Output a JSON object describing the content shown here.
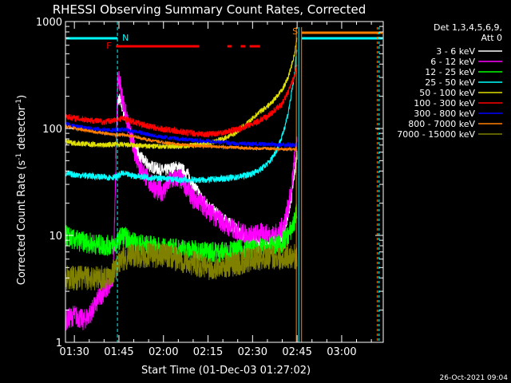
{
  "chart_data": {
    "type": "line",
    "title": "RHESSI Observing Summary Count Rates, Corrected",
    "xlabel": "Start Time (01-Dec-03 01:27:02)",
    "ylabel_main": "Corrected Count Rate (s",
    "ylabel_sup1": "-1",
    "ylabel_mid": " detector",
    "ylabel_sup2": "-1",
    "ylabel_end": ")",
    "yscale": "log",
    "ylim": [
      1,
      1000
    ],
    "xlim_minutes": [
      87.0,
      194.0
    ],
    "x_tick_labels": [
      "01:30",
      "01:45",
      "02:00",
      "02:15",
      "02:30",
      "02:45",
      "03:00"
    ],
    "x_tick_minutes": [
      90,
      105,
      120,
      135,
      150,
      165,
      180
    ],
    "y_tick_labels": [
      "1",
      "10",
      "100",
      "1000"
    ],
    "y_tick_values": [
      1,
      10,
      100,
      1000
    ],
    "timestamp": "26-Oct-2021 09:04",
    "legend_header": "Det 1,3,4,5,6,9,",
    "legend_att": "Att 0",
    "flags": {
      "N": "N",
      "F": "F",
      "S": "S",
      "n_minutes": 104.5,
      "f_segments": [
        [
          104,
          132
        ],
        [
          141.5,
          143
        ],
        [
          146,
          147.5
        ],
        [
          149,
          152.5
        ]
      ],
      "s_minutes": 165,
      "saa_band": [
        166.5,
        192
      ]
    },
    "series": [
      {
        "name": "3 - 6 keV",
        "color": "#ffffff",
        "noise": 0.06,
        "x": [
          104,
          104.5,
          105,
          106,
          108,
          110,
          112,
          115,
          118,
          120,
          122,
          125,
          128,
          130,
          133,
          136,
          139,
          142,
          145,
          148,
          150,
          153,
          156,
          159,
          161,
          163,
          164,
          165
        ],
        "y": [
          60,
          160,
          195,
          160,
          110,
          70,
          55,
          45,
          42,
          40,
          42,
          44,
          38,
          30,
          22,
          18,
          15,
          13,
          11,
          9,
          9.5,
          9,
          8.5,
          9,
          12,
          22,
          35,
          60
        ]
      },
      {
        "name": "6 - 12 keV",
        "color": "#ff00ff",
        "noise": 0.1,
        "x": [
          87,
          90,
          93,
          95,
          96,
          97,
          98,
          99,
          100,
          101,
          102,
          103,
          104,
          104.5,
          105,
          106,
          108,
          110,
          112,
          115,
          118,
          120,
          122,
          125,
          128,
          130,
          133,
          136,
          139,
          142,
          145,
          148,
          150,
          153,
          156,
          159,
          161,
          163,
          164,
          165
        ],
        "y": [
          1.6,
          1.8,
          1.6,
          1.8,
          2.0,
          2.2,
          2.5,
          2.8,
          3.0,
          3.2,
          3.5,
          4.0,
          50,
          250,
          300,
          200,
          110,
          65,
          45,
          32,
          26,
          26,
          32,
          35,
          28,
          22,
          20,
          16,
          14,
          12,
          11,
          10,
          10,
          10.5,
          10,
          10.5,
          14,
          25,
          50,
          70
        ]
      },
      {
        "name": "12 - 25 keV",
        "color": "#00ff00",
        "noise": 0.1,
        "x": [
          87,
          90,
          95,
          100,
          104,
          106,
          110,
          115,
          120,
          125,
          130,
          135,
          140,
          145,
          150,
          155,
          160,
          162,
          164,
          165
        ],
        "y": [
          10,
          9,
          8.5,
          8,
          8.2,
          10,
          8.5,
          8,
          7.5,
          7.5,
          7.2,
          7.0,
          7.0,
          7.2,
          7.5,
          7.5,
          8.5,
          10,
          13,
          18
        ]
      },
      {
        "name": "25 - 50 keV",
        "color": "#00ffff",
        "noise": 0.03,
        "x": [
          87,
          90,
          95,
          100,
          104,
          106,
          110,
          115,
          120,
          125,
          130,
          135,
          140,
          145,
          150,
          153,
          156,
          158,
          160,
          162,
          164,
          165
        ],
        "y": [
          38,
          37,
          36,
          35,
          35,
          38,
          36,
          35,
          34,
          33,
          33,
          33,
          34,
          35,
          38,
          42,
          50,
          62,
          85,
          140,
          300,
          600
        ]
      },
      {
        "name": "50 - 100 keV",
        "color": "#e0e000",
        "noise": 0.025,
        "x": [
          87,
          90,
          95,
          100,
          104,
          108,
          112,
          116,
          120,
          124,
          128,
          132,
          136,
          140,
          144,
          148,
          152,
          156,
          160,
          162,
          164,
          165
        ],
        "y": [
          75,
          73,
          71,
          70,
          71,
          70,
          69,
          68,
          68,
          68,
          69,
          71,
          74,
          80,
          90,
          110,
          140,
          170,
          230,
          300,
          480,
          700
        ]
      },
      {
        "name": "100 - 300 keV",
        "color": "#ff0000",
        "noise": 0.03,
        "x": [
          87,
          90,
          95,
          100,
          104,
          106,
          110,
          115,
          120,
          125,
          130,
          135,
          140,
          145,
          150,
          155,
          160,
          162,
          164,
          165
        ],
        "y": [
          130,
          125,
          120,
          115,
          120,
          125,
          115,
          105,
          98,
          94,
          90,
          88,
          92,
          98,
          110,
          130,
          170,
          220,
          300,
          400
        ]
      },
      {
        "name": "300 - 800 keV",
        "color": "#0000ff",
        "noise": 0.02,
        "x": [
          87,
          90,
          95,
          100,
          104,
          106,
          110,
          115,
          120,
          125,
          130,
          135,
          140,
          145,
          150,
          155,
          160,
          164,
          165
        ],
        "y": [
          110,
          105,
          100,
          97,
          96,
          98,
          94,
          88,
          83,
          80,
          78,
          76,
          74,
          72,
          72,
          71,
          70,
          70,
          70
        ]
      },
      {
        "name": "800 - 7000 keV",
        "color": "#ff8000",
        "noise": 0.015,
        "x": [
          87,
          90,
          95,
          100,
          104,
          106,
          110,
          115,
          120,
          125,
          130,
          135,
          140,
          145,
          150,
          155,
          160,
          164,
          165
        ],
        "y": [
          105,
          100,
          95,
          90,
          87,
          88,
          84,
          78,
          74,
          71,
          69,
          68,
          67,
          66,
          65,
          65,
          64,
          64,
          64
        ]
      },
      {
        "name": "7000 - 15000 keV",
        "color": "#808000",
        "noise": 0.12,
        "x": [
          87,
          90,
          95,
          100,
          103,
          104,
          106,
          110,
          115,
          120,
          125,
          130,
          135,
          140,
          145,
          150,
          155,
          160,
          164,
          165
        ],
        "y": [
          4,
          4,
          4,
          4,
          4.5,
          5,
          6,
          6.5,
          6.5,
          6.5,
          6,
          5.5,
          5,
          5.2,
          5.5,
          6,
          6.3,
          6.3,
          6.5,
          6
        ]
      }
    ]
  }
}
